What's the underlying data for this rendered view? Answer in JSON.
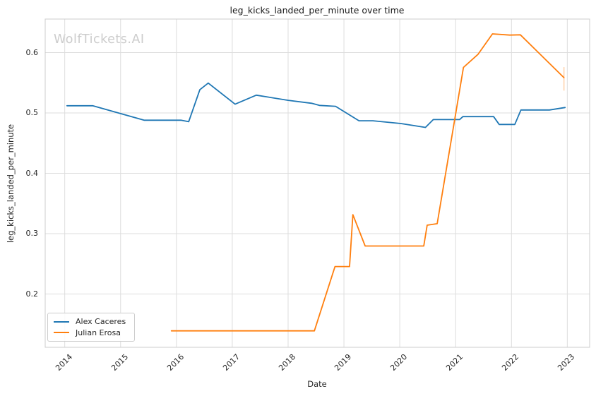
{
  "watermark": {
    "text": "WolfTickets.AI",
    "color": "#cccccc"
  },
  "styles": {
    "grid_color": "#dddddd",
    "frame_color": "#cccccc",
    "text_color": "#262626",
    "background": "#ffffff"
  },
  "chart_data": {
    "type": "line",
    "title": "leg_kicks_landed_per_minute over time",
    "xlabel": "Date",
    "ylabel": "leg_kicks_landed_per_minute",
    "grid": true,
    "legend_position": "lower left",
    "x_ticks": [
      "2014",
      "2015",
      "2016",
      "2017",
      "2018",
      "2019",
      "2020",
      "2021",
      "2022",
      "2023"
    ],
    "x_tick_values": [
      2014,
      2015,
      2016,
      2017,
      2018,
      2019,
      2020,
      2021,
      2022,
      2023
    ],
    "y_ticks": [
      "0.2",
      "0.3",
      "0.4",
      "0.5",
      "0.6"
    ],
    "y_tick_values": [
      0.2,
      0.3,
      0.4,
      0.5,
      0.6
    ],
    "xlim": [
      2013.65,
      2023.4
    ],
    "ylim": [
      0.1117,
      0.6556
    ],
    "series": [
      {
        "name": "Alex Caceres",
        "color": "#1f77b4",
        "x": [
          2014.04,
          2014.5,
          2015.42,
          2016.08,
          2016.22,
          2016.42,
          2016.57,
          2017.05,
          2017.43,
          2018.0,
          2018.42,
          2018.56,
          2018.85,
          2019.27,
          2019.52,
          2020.02,
          2020.46,
          2020.6,
          2021.07,
          2021.13,
          2021.68,
          2021.78,
          2022.06,
          2022.17,
          2022.68,
          2022.96
        ],
        "y": [
          0.512,
          0.512,
          0.488,
          0.488,
          0.4855,
          0.5385,
          0.5495,
          0.5145,
          0.5295,
          0.521,
          0.516,
          0.5125,
          0.511,
          0.487,
          0.487,
          0.4825,
          0.476,
          0.489,
          0.489,
          0.494,
          0.494,
          0.481,
          0.481,
          0.505,
          0.505,
          0.509
        ]
      },
      {
        "name": "Julian Erosa",
        "color": "#ff7f0e",
        "x": [
          2015.91,
          2018.47,
          2018.84,
          2019.1,
          2019.16,
          2019.38,
          2020.43,
          2020.49,
          2020.67,
          2021.14,
          2021.4,
          2021.66,
          2021.97,
          2022.16,
          2022.94
        ],
        "y": [
          0.139,
          0.139,
          0.2455,
          0.2455,
          0.3315,
          0.2795,
          0.2795,
          0.314,
          0.3165,
          0.5755,
          0.597,
          0.631,
          0.629,
          0.6295,
          0.5585
        ],
        "last_point_error_bar": {
          "x": 2022.94,
          "y_low": 0.537,
          "y_high": 0.576
        }
      }
    ]
  }
}
